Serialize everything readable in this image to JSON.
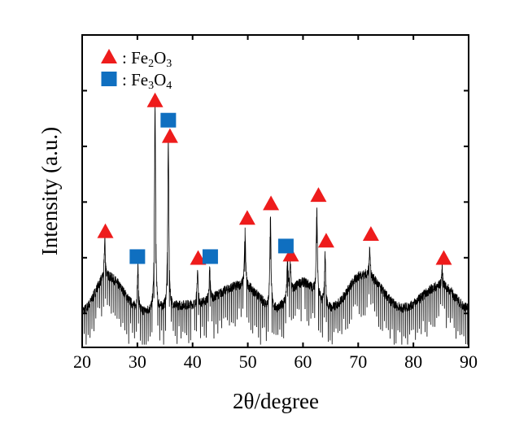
{
  "chart_data": {
    "type": "line",
    "title": "",
    "xlabel": "2θ/degree",
    "ylabel": "Intensity (a.u.)",
    "xlim": [
      20,
      90
    ],
    "ylim": [
      0.39,
      6.0
    ],
    "x_ticks": [
      20,
      30,
      40,
      50,
      60,
      70,
      80,
      90
    ],
    "x_tick_labels": [
      "20",
      "30",
      "40",
      "50",
      "60",
      "70",
      "80",
      "90"
    ],
    "y_ticks": [
      1,
      2,
      3,
      4,
      5
    ],
    "y_tick_labels_shown": false,
    "grid": false,
    "line_color": "#000000",
    "background_humps": [
      [
        20,
        1.05
      ],
      [
        24.5,
        1.66
      ],
      [
        31,
        1.03
      ],
      [
        40,
        1.15
      ],
      [
        49,
        1.5
      ],
      [
        55,
        1.08
      ],
      [
        60,
        1.55
      ],
      [
        65,
        1.1
      ],
      [
        71,
        1.7
      ],
      [
        78,
        1.1
      ],
      [
        85,
        1.5
      ],
      [
        90,
        1.1
      ]
    ],
    "peaks": [
      {
        "x": 24.1,
        "y": 2.31
      },
      {
        "x": 30.1,
        "y": 1.83
      },
      {
        "x": 33.2,
        "y": 4.72
      },
      {
        "x": 35.6,
        "y": 4.09
      },
      {
        "x": 40.9,
        "y": 1.77
      },
      {
        "x": 43.1,
        "y": 1.77
      },
      {
        "x": 49.5,
        "y": 2.5
      },
      {
        "x": 54.1,
        "y": 2.78
      },
      {
        "x": 57.2,
        "y": 1.95
      },
      {
        "x": 57.7,
        "y": 1.9
      },
      {
        "x": 62.5,
        "y": 2.9
      },
      {
        "x": 64.0,
        "y": 2.07
      },
      {
        "x": 72.1,
        "y": 2.17
      },
      {
        "x": 85.2,
        "y": 1.8
      }
    ],
    "legend": {
      "placement": "top-left",
      "entries": [
        {
          "marker": "triangle",
          "color": "#ee1c1c",
          "prefix": ": Fe",
          "sub1": "2",
          "mid": "O",
          "sub2": "3"
        },
        {
          "marker": "square",
          "color": "#0f6fc0",
          "prefix": ": Fe",
          "sub1": "3",
          "mid": "O",
          "sub2": "4"
        }
      ]
    },
    "markers": {
      "Fe2O3": {
        "shape": "triangle",
        "color": "#ee1c1c",
        "points": [
          [
            24.2,
            2.47
          ],
          [
            33.2,
            4.82
          ],
          [
            35.9,
            4.18
          ],
          [
            41.0,
            1.99
          ],
          [
            49.9,
            2.71
          ],
          [
            54.2,
            2.97
          ],
          [
            57.8,
            2.05
          ],
          [
            62.8,
            3.12
          ],
          [
            64.2,
            2.3
          ],
          [
            72.3,
            2.42
          ],
          [
            85.5,
            1.99
          ]
        ]
      },
      "Fe3O4": {
        "shape": "square",
        "color": "#0f6fc0",
        "points": [
          [
            30.0,
            2.02
          ],
          [
            35.6,
            4.47
          ],
          [
            43.2,
            2.02
          ],
          [
            56.9,
            2.21
          ]
        ]
      }
    }
  }
}
